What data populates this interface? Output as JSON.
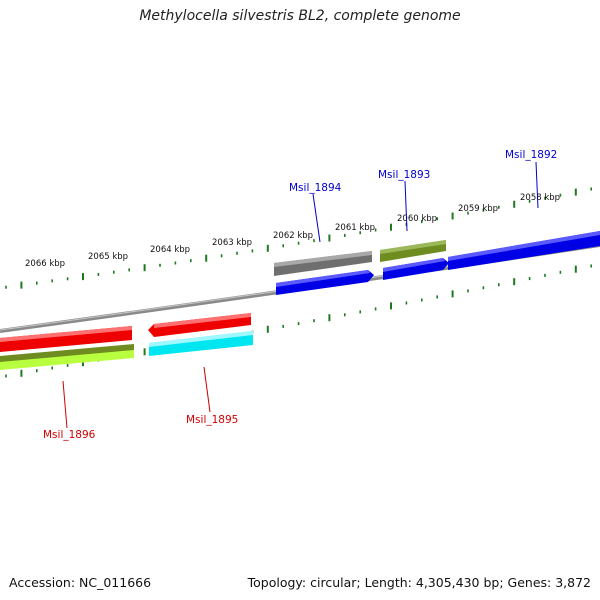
{
  "title": "Methylocella silvestris BL2, complete genome",
  "footer": {
    "accession": "Accession: NC_011666",
    "summary": "Topology: circular; Length: 4,305,430 bp; Genes: 3,872"
  },
  "kbp_labels": [
    "2066 kbp",
    "2065 kbp",
    "2064 kbp",
    "2063 kbp",
    "2062 kbp",
    "2061 kbp",
    "2060 kbp",
    "2059 kbp",
    "2058 kbp"
  ],
  "gene_labels": [
    "Msil_1892",
    "Msil_1893",
    "Msil_1894",
    "Msil_1895",
    "Msil_1896"
  ],
  "colors": {
    "backbone": "#8a8a8a",
    "tick": "#1e7a1e",
    "blue": "#0000e6",
    "red": "#ee0000",
    "gray": "#6f6f6f",
    "olive": "#6e8c1f",
    "cyan": "#00e6f0",
    "lime": "#8ee82b",
    "label_forward": "#0000cc",
    "label_reverse": "#cc0000"
  }
}
